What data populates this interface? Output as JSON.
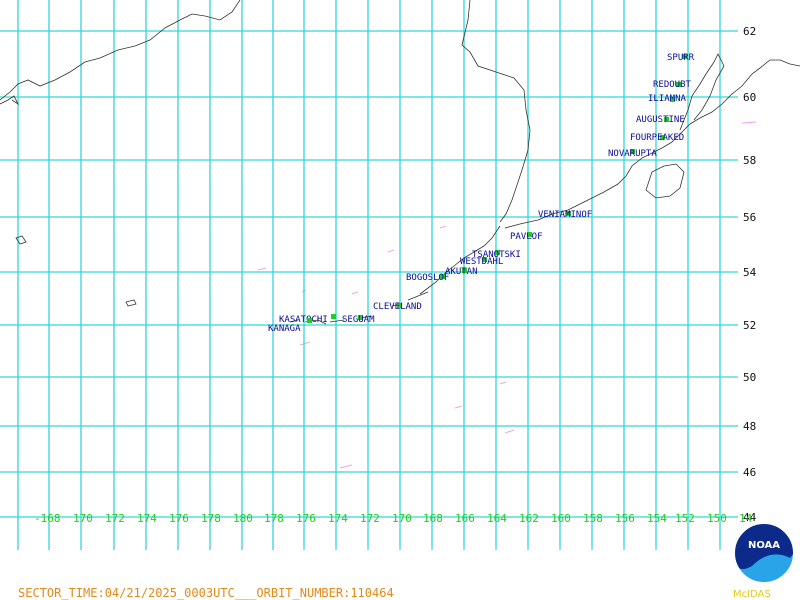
{
  "map": {
    "latitude_labels": [
      "62",
      "60",
      "58",
      "56",
      "54",
      "52",
      "50",
      "48",
      "46",
      "44"
    ],
    "longitude_labels": [
      "-168",
      "170",
      "172",
      "174",
      "176",
      "178",
      "180",
      "178",
      "176",
      "174",
      "172",
      "170",
      "168",
      "166",
      "164",
      "162",
      "160",
      "158",
      "156",
      "154",
      "152",
      "150",
      "14"
    ],
    "volcanoes": [
      {
        "name": "SPURR"
      },
      {
        "name": "REDOUBT"
      },
      {
        "name": "ILIAMNA"
      },
      {
        "name": "AUGUSTINE"
      },
      {
        "name": "FOURPEAKED"
      },
      {
        "name": "NOVARUPTA"
      },
      {
        "name": "VENIAMINOF"
      },
      {
        "name": "PAVLOF"
      },
      {
        "name": "TSANOTSKI"
      },
      {
        "name": "WESTDAHL"
      },
      {
        "name": "AKUTAN"
      },
      {
        "name": "BOGOSLOF"
      },
      {
        "name": "CLEVELAND"
      },
      {
        "name": "KASATOCHI"
      },
      {
        "name": "SEGUAM"
      },
      {
        "name": "KANAGA"
      }
    ],
    "colors": {
      "grid": "#33d6d6",
      "volcano_label": "#0b0b9c",
      "volcano_marker": "#22cc22",
      "coast": "#333333",
      "footer": "#e08a1a"
    }
  },
  "footer": {
    "sector_text": "SECTOR_TIME:04/21/2025_0003UTC___ORBIT_NUMBER:110464",
    "mcidas_label": "McIDAS"
  },
  "logo": {
    "text": "NOAA"
  }
}
